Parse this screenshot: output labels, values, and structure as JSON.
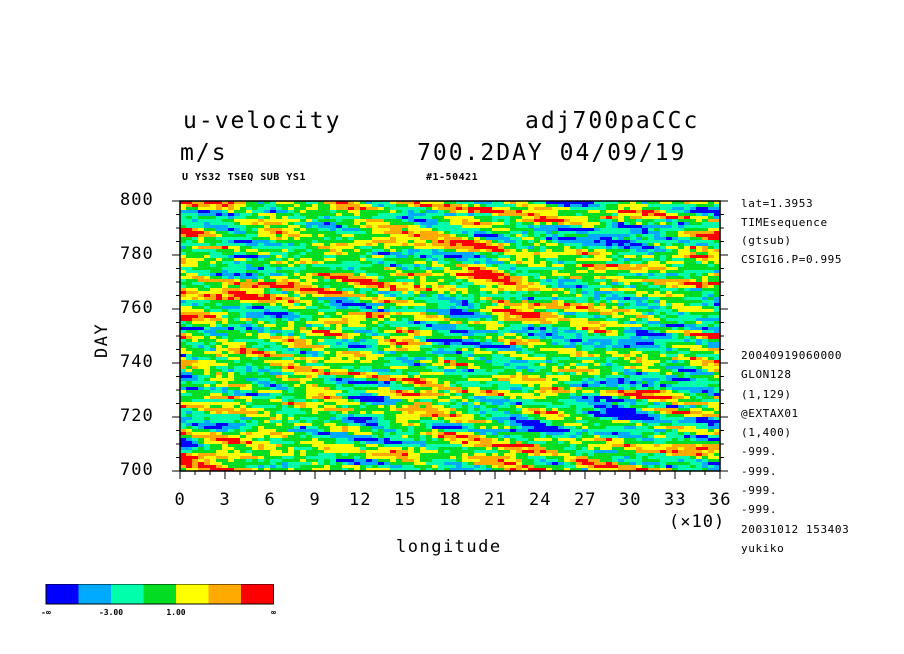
{
  "header": {
    "variable": "u-velocity",
    "units": "m/s",
    "dataset": "adj700paCCc",
    "time_info": "700.2DAY 04/09/19",
    "sub_left": "U YS32 TSEQ SUB YS1",
    "sub_right": "#1-50421"
  },
  "side_info": {
    "top": [
      "lat=1.3953",
      "TIMEsequence",
      "(gtsub)",
      "CSIG16.P=0.995"
    ],
    "bottom": [
      "20040919060000",
      "GLON128",
      "(1,129)",
      "@EXTAX01",
      "(1,400)",
      "-999.",
      "-999.",
      "-999.",
      "-999.",
      "20031012 153403",
      "yukiko"
    ]
  },
  "colorbar": {
    "colors": [
      "#0000ff",
      "#00aaff",
      "#00ffaa",
      "#00dd22",
      "#ffff00",
      "#ffaa00",
      "#ff0000"
    ],
    "labels": [
      "-∞",
      "-3.00",
      "1.00",
      "∞"
    ]
  },
  "chart_data": {
    "type": "heatmap",
    "xlabel": "longitude",
    "ylabel": "DAY",
    "x_multiplier": "(×10)",
    "xlim": [
      0,
      36
    ],
    "ylim": [
      700,
      800
    ],
    "xticks": [
      "0",
      "3",
      "6",
      "9",
      "12",
      "15",
      "18",
      "21",
      "24",
      "27",
      "30",
      "33",
      "36"
    ],
    "yticks": [
      "700",
      "720",
      "740",
      "760",
      "780",
      "800"
    ],
    "value_levels": [
      "< -3.00",
      "-3.00 .. 1.00",
      "> 1.00"
    ],
    "field_description": "noisy zonal velocity field dominated by green/yellow with scattered blue and red streaks"
  }
}
